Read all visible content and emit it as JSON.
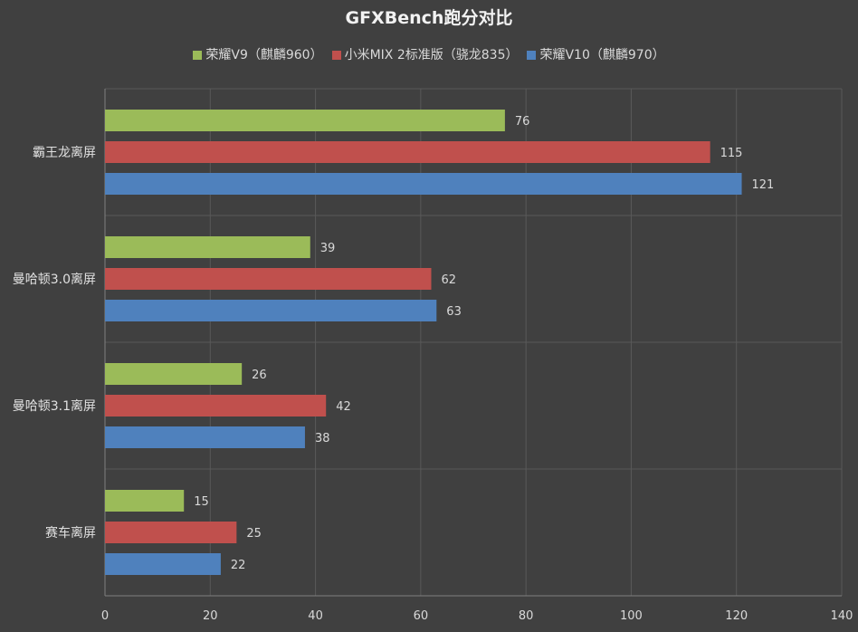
{
  "chart_data": {
    "type": "bar",
    "orientation": "horizontal",
    "title": "GFXBench跑分对比",
    "categories": [
      "霸王龙离屏",
      "曼哈顿3.0离屏",
      "曼哈顿3.1离屏",
      "赛车离屏"
    ],
    "series": [
      {
        "name": "荣耀V9（麒麟960）",
        "color": "#9bbb59",
        "values": [
          76,
          39,
          26,
          15
        ]
      },
      {
        "name": "小米MIX 2标准版（骁龙835）",
        "color": "#c0504d",
        "values": [
          115,
          62,
          42,
          25
        ]
      },
      {
        "name": "荣耀V10（麒麟970）",
        "color": "#4f81bd",
        "values": [
          121,
          63,
          38,
          22
        ]
      }
    ],
    "xlim": [
      0,
      140
    ],
    "xticks": [
      0,
      20,
      40,
      60,
      80,
      100,
      120,
      140
    ],
    "xlabel": "",
    "ylabel": "",
    "grid": true,
    "legend_position": "top",
    "data_labels": true
  }
}
